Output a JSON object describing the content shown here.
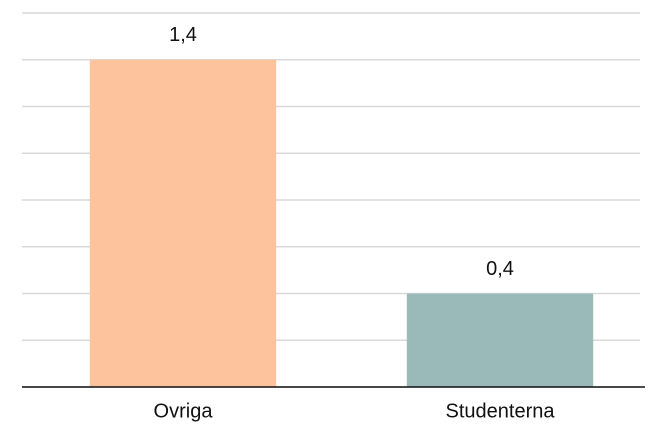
{
  "chart_data": {
    "type": "bar",
    "categories": [
      "Ovriga",
      "Studenterna"
    ],
    "values": [
      1.4,
      0.4
    ],
    "value_labels": [
      "1,4",
      "0,4"
    ],
    "colors": [
      "#fdc39d",
      "#9ab9b9"
    ],
    "ylim": [
      0,
      1.6
    ],
    "yticks": [
      0,
      0.2,
      0.4,
      0.6,
      0.8,
      1.0,
      1.2,
      1.4,
      1.6
    ],
    "grid": true
  }
}
